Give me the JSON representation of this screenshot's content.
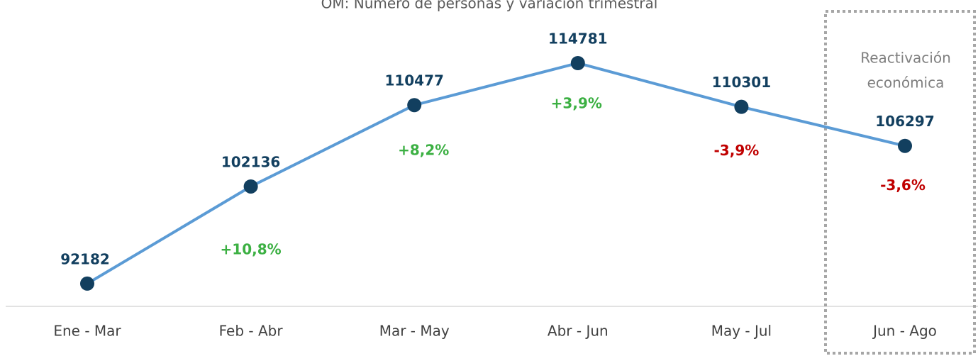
{
  "chart_data": {
    "type": "line",
    "title": "OM: Número de personas y variación trimestral",
    "categories": [
      "Ene - Mar",
      "Feb - Abr",
      "Mar - May",
      "Abr - Jun",
      "May - Jul",
      "Jun - Ago"
    ],
    "series": [
      {
        "name": "Número de personas",
        "color": "#5b9bd5",
        "marker_color": "#123f5f",
        "values": [
          92182,
          102136,
          110477,
          114781,
          110301,
          106297
        ]
      }
    ],
    "variation": {
      "values": [
        null,
        10.8,
        8.2,
        3.9,
        -3.9,
        -3.6
      ],
      "value_labels": [
        null,
        "+10,8%",
        "+8,2%",
        "+3,9%",
        "-3,9%",
        "-3,6%"
      ],
      "positive_color": "#3cb043",
      "negative_color": "#c00000"
    },
    "highlight": {
      "lines": [
        "Reactivación",
        "económica"
      ],
      "category": 5
    },
    "ylim": [
      89850,
      121250
    ]
  }
}
